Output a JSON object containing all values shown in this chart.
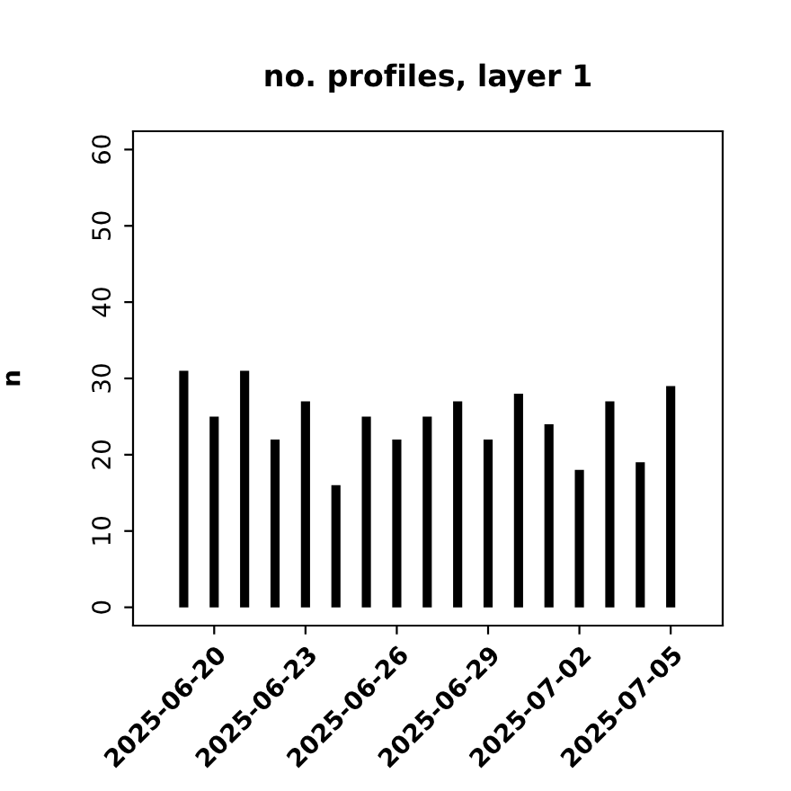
{
  "chart_data": {
    "type": "bar",
    "title": "no. profiles, layer 1",
    "ylabel": "n",
    "x": [
      "2025-06-19",
      "2025-06-20",
      "2025-06-21",
      "2025-06-22",
      "2025-06-23",
      "2025-06-24",
      "2025-06-25",
      "2025-06-26",
      "2025-06-27",
      "2025-06-28",
      "2025-06-29",
      "2025-06-30",
      "2025-07-01",
      "2025-07-02",
      "2025-07-03",
      "2025-07-04",
      "2025-07-05"
    ],
    "values": [
      31,
      25,
      31,
      22,
      27,
      16,
      25,
      22,
      25,
      27,
      22,
      28,
      24,
      18,
      27,
      19,
      29
    ],
    "color": "#000000",
    "xlim": [
      "2025-06-17T08:00",
      "2025-07-06T17:00"
    ],
    "xticks": [
      "2025-06-20",
      "2025-06-23",
      "2025-06-26",
      "2025-06-29",
      "2025-07-02",
      "2025-07-05"
    ],
    "ylim": [
      -2.4,
      62.4
    ],
    "yticks": [
      0,
      10,
      20,
      30,
      40,
      50,
      60
    ],
    "grid": false,
    "legend": false
  }
}
